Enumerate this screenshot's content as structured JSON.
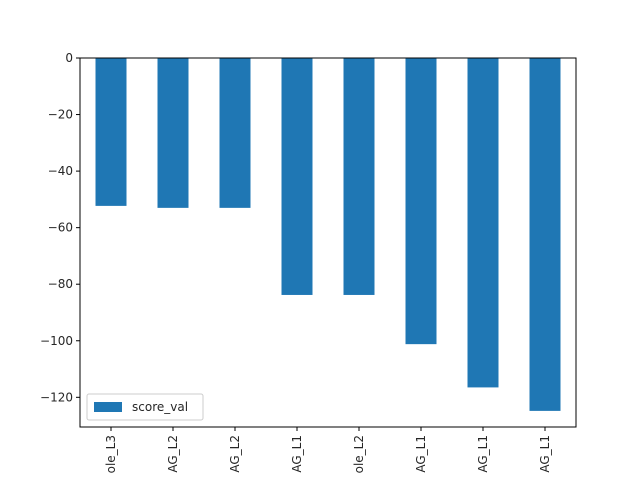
{
  "chart_data": {
    "type": "bar",
    "orientation": "vertical",
    "categories": [
      "ole_L3",
      "AG_L2",
      "AG_L2",
      "AG_L1",
      "ole_L2",
      "AG_L1",
      "AG_L1",
      "AG_L1"
    ],
    "series": [
      {
        "name": "score_val",
        "color": "#1f77b4",
        "values": [
          -52.3,
          -53.0,
          -53.0,
          -83.8,
          -83.8,
          -101.2,
          -116.5,
          -124.8
        ]
      }
    ],
    "title": "",
    "xlabel": "",
    "ylabel": "",
    "ylim": [
      -130.5,
      0
    ],
    "yticks": [
      0,
      -20,
      -40,
      -60,
      -80,
      -100,
      -120
    ],
    "ytick_labels": [
      "0",
      "−20",
      "−40",
      "−60",
      "−80",
      "−100",
      "−120"
    ],
    "grid": false,
    "legend_position": "lower-left"
  }
}
